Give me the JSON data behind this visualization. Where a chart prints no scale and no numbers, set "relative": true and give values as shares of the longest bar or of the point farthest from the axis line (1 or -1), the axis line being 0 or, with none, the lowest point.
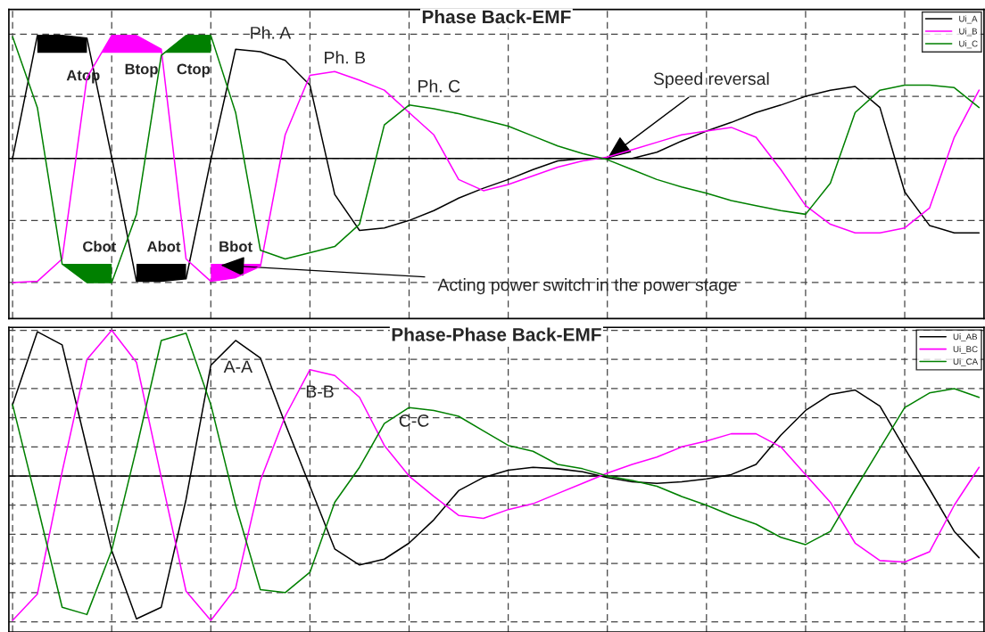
{
  "chart_data": [
    {
      "type": "line",
      "title": "Phase Back-EMF",
      "relative": true,
      "grid": true,
      "legend": "top right",
      "categories": [
        null,
        null,
        null,
        null,
        null,
        null,
        null,
        null,
        null,
        null,
        null,
        null,
        null,
        null,
        null,
        null,
        null,
        null,
        null,
        null,
        null,
        null,
        null,
        null,
        null,
        null,
        null,
        null,
        null,
        null,
        null,
        null,
        null,
        null,
        null,
        null,
        null,
        null,
        null,
        null
      ],
      "series": [
        {
          "name": "Ui_A",
          "color": "#000000",
          "values": [
            0,
            0.99,
            0.99,
            0.97,
            0.01,
            -0.99,
            -0.99,
            -0.97,
            -0.01,
            0.88,
            0.86,
            0.79,
            0.59,
            -0.29,
            -0.58,
            -0.56,
            -0.5,
            -0.42,
            -0.32,
            -0.24,
            -0.17,
            -0.09,
            -0.02,
            0,
            0,
            0,
            0.05,
            0.14,
            0.22,
            0.29,
            0.37,
            0.43,
            0.5,
            0.55,
            0.58,
            0.41,
            -0.27,
            -0.54,
            -0.6,
            -0.6
          ]
        },
        {
          "name": "Ui_B",
          "color": "#ff00ff",
          "values": [
            -1.0,
            -0.99,
            -0.81,
            0.65,
            0.99,
            0.99,
            0.88,
            -0.81,
            -0.99,
            -0.96,
            -0.87,
            0.19,
            0.67,
            0.7,
            0.63,
            0.55,
            0.37,
            0.19,
            -0.17,
            -0.26,
            -0.21,
            -0.14,
            -0.07,
            -0.02,
            0.01,
            0.07,
            0.13,
            0.19,
            0.22,
            0.25,
            0.17,
            -0.09,
            -0.38,
            -0.53,
            -0.6,
            -0.6,
            -0.56,
            -0.4,
            0.17,
            0.55
          ]
        },
        {
          "name": "Ui_C",
          "color": "#008000",
          "values": [
            0.98,
            0.41,
            -0.85,
            -1.0,
            -1.0,
            -0.45,
            0.83,
            0.99,
            0.99,
            0.37,
            -0.74,
            -0.81,
            -0.76,
            -0.71,
            -0.53,
            0.27,
            0.43,
            0.4,
            0.36,
            0.31,
            0.26,
            0.18,
            0.1,
            0.04,
            -0.01,
            -0.09,
            -0.17,
            -0.23,
            -0.28,
            -0.34,
            -0.38,
            -0.42,
            -0.45,
            -0.2,
            0.37,
            0.55,
            0.59,
            0.59,
            0.57,
            0.41
          ]
        }
      ],
      "annotations": [
        "Ph. A",
        "Ph. B",
        "Ph. C",
        "Speed reversal",
        "Acting power switch in the power stage",
        "Atop",
        "Btop",
        "Ctop",
        "Cbot",
        "Abot",
        "Bbot"
      ]
    },
    {
      "type": "line",
      "title": "Phase-Phase Back-EMF",
      "relative": true,
      "grid": true,
      "legend": "top right",
      "categories": [
        null,
        null,
        null,
        null,
        null,
        null,
        null,
        null,
        null,
        null,
        null,
        null,
        null,
        null,
        null,
        null,
        null,
        null,
        null,
        null,
        null,
        null,
        null,
        null,
        null,
        null,
        null,
        null,
        null,
        null,
        null,
        null,
        null,
        null,
        null,
        null,
        null,
        null,
        null,
        null
      ],
      "series": [
        {
          "name": "Ui_AB",
          "color": "#000000",
          "values": [
            0.49,
            0.99,
            0.9,
            0.19,
            -0.51,
            -0.98,
            -0.9,
            -0.16,
            0.76,
            0.93,
            0.81,
            0.36,
            -0.07,
            -0.5,
            -0.61,
            -0.57,
            -0.46,
            -0.3,
            -0.1,
            -0.01,
            0.04,
            0.06,
            0.05,
            0.03,
            -0.01,
            -0.04,
            -0.05,
            -0.04,
            -0.02,
            0.01,
            0.08,
            0.28,
            0.45,
            0.56,
            0.59,
            0.48,
            0.19,
            -0.09,
            -0.38,
            -0.56
          ]
        },
        {
          "name": "Ui_BC",
          "color": "#ff00ff",
          "values": [
            -0.99,
            -0.81,
            0.03,
            0.8,
            1.0,
            0.78,
            -0.01,
            -0.79,
            -0.99,
            -0.77,
            -0.03,
            0.41,
            0.73,
            0.69,
            0.54,
            0.21,
            0,
            -0.14,
            -0.27,
            -0.29,
            -0.23,
            -0.19,
            -0.12,
            -0.05,
            0.02,
            0.08,
            0.13,
            0.2,
            0.24,
            0.29,
            0.29,
            0.2,
            0.01,
            -0.18,
            -0.46,
            -0.58,
            -0.59,
            -0.52,
            -0.2,
            0.06
          ]
        },
        {
          "name": "Ui_CA",
          "color": "#008000",
          "values": [
            0.49,
            -0.2,
            -0.9,
            -0.95,
            -0.51,
            0.19,
            0.93,
            0.98,
            0.49,
            -0.2,
            -0.78,
            -0.8,
            -0.66,
            -0.18,
            0.06,
            0.36,
            0.47,
            0.45,
            0.41,
            0.31,
            0.21,
            0.17,
            0.08,
            0.05,
            0,
            -0.03,
            -0.07,
            -0.14,
            -0.2,
            -0.27,
            -0.33,
            -0.42,
            -0.47,
            -0.38,
            -0.09,
            0.19,
            0.47,
            0.57,
            0.6,
            0.54
          ]
        }
      ],
      "annotations": [
        "A-A",
        "B-B",
        "C-C"
      ]
    }
  ]
}
